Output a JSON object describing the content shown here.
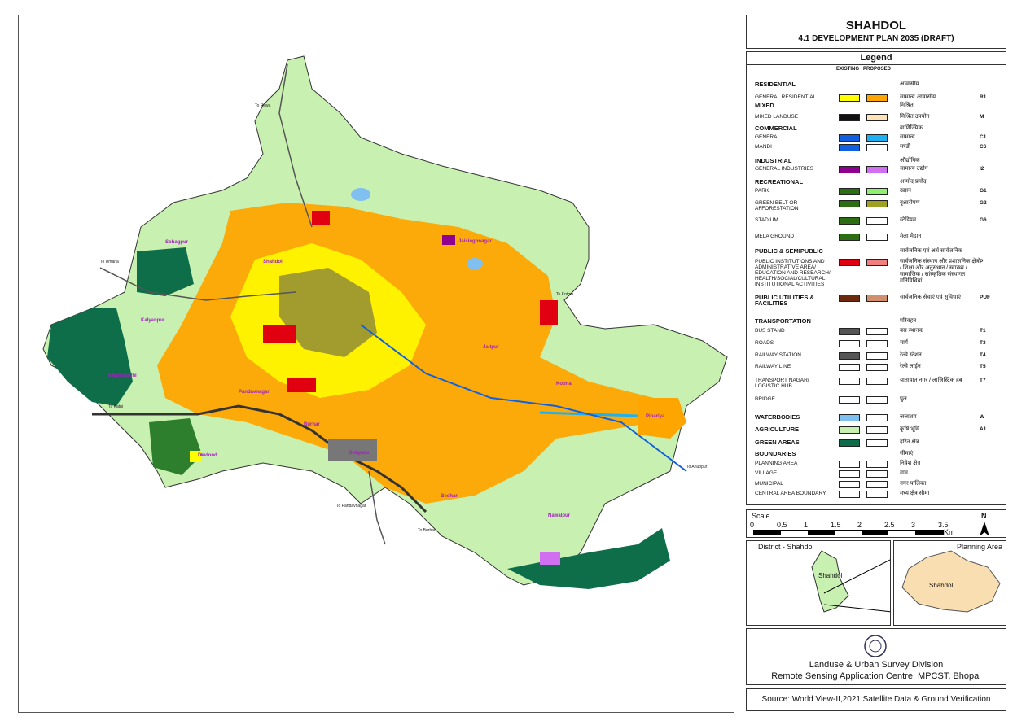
{
  "title": {
    "city": "SHAHDOL",
    "subtitle": "4.1 DEVELOPMENT PLAN  2035 (DRAFT)"
  },
  "legend": {
    "heading": "Legend",
    "col_existing": "EXISTING",
    "col_proposed": "PROPOSED",
    "rows": [
      {
        "label": "RESIDENTIAL",
        "section": true,
        "hindi": "आवासीय",
        "code": "",
        "ex": "",
        "pr": ""
      },
      {
        "label": "GENERAL RESIDENTIAL",
        "section": false,
        "hindi": "सामान्य आवासीय",
        "code": "R1",
        "ex": "#ffff00",
        "pr": "#ffa500"
      },
      {
        "label": "MIXED",
        "section": true,
        "hindi": "मिश्रित",
        "code": "",
        "ex": "",
        "pr": ""
      },
      {
        "label": "MIXED LANDUSE",
        "section": false,
        "hindi": "मिश्रित उपयोग",
        "code": "M",
        "ex": "#111111",
        "pr": "#ffe3b8"
      },
      {
        "label": "COMMERCIAL",
        "section": true,
        "hindi": "वाणिज्यिक",
        "code": "",
        "ex": "",
        "pr": ""
      },
      {
        "label": "GENERAL",
        "section": false,
        "hindi": "सामान्य",
        "code": "C1",
        "ex": "#1060e0",
        "pr": "#20b0f0"
      },
      {
        "label": "MANDI",
        "section": false,
        "hindi": "मण्डी",
        "code": "C6",
        "ex": "#1060e0",
        "pr": "#ffffff"
      },
      {
        "label": "INDUSTRIAL",
        "section": true,
        "hindi": "औद्योगिक",
        "code": "",
        "ex": "",
        "pr": ""
      },
      {
        "label": "GENERAL INDUSTRIES",
        "section": false,
        "hindi": "सामान्य उद्योग",
        "code": "I2",
        "ex": "#900090",
        "pr": "#d070f0"
      },
      {
        "label": "RECREATIONAL",
        "section": true,
        "hindi": "आमोद प्रमोद",
        "code": "",
        "ex": "",
        "pr": ""
      },
      {
        "label": "PARK",
        "section": false,
        "hindi": "उद्यान",
        "code": "G1",
        "ex": "#2d6e14",
        "pr": "#90ee70"
      },
      {
        "label": "GREEN BELT OR AFFORESTATION",
        "section": false,
        "hindi": "वृक्षारोपण",
        "code": "G2",
        "ex": "#2d6e14",
        "pr": "#a0a020"
      },
      {
        "label": "STADIUM",
        "section": false,
        "hindi": "स्टेडियम",
        "code": "G6",
        "ex": "#2d6e14",
        "pr": "#ffffff"
      },
      {
        "label": "MELA GROUND",
        "section": false,
        "hindi": "मेला मैदान",
        "code": "",
        "ex": "#2d6e14",
        "pr": "#ffffff"
      },
      {
        "label": "PUBLIC & SEMIPUBLIC",
        "section": true,
        "hindi": "सार्वजनिक एवं अर्ध सार्वजनिक",
        "code": "",
        "ex": "",
        "pr": ""
      },
      {
        "label": "PUBLIC INSTITUTIONS AND ADMINISTRATIVE AREA/ EDUCATION AND RESEARCH/ HEALTH/SOCIAL/CULTURAL INSTITUTIONAL ACTIVITIES",
        "section": false,
        "hindi": "सार्वजनिक संस्थान और प्रशासनिक क्षेत्रों / शिक्षा और अनुसंधान / स्वास्थ्य / सामाजिक / सांस्कृतिक संस्थागत गतिविधियां",
        "code": "P",
        "ex": "#e00010",
        "pr": "#f08080"
      },
      {
        "label": "PUBLIC UTILITIES & FACILITIES",
        "section": true,
        "hindi": "सार्वजनिक सेवाएं एवं सुविधाएं",
        "code": "PUF",
        "ex": "#6b2a10",
        "pr": "#d09070"
      },
      {
        "label": "TRANSPORTATION",
        "section": true,
        "hindi": "परिवहन",
        "code": "",
        "ex": "",
        "pr": ""
      },
      {
        "label": "BUS STAND",
        "section": false,
        "hindi": "बस स्थानक",
        "code": "T1",
        "ex": "#555555",
        "pr": "#ffffff"
      },
      {
        "label": "ROADS",
        "section": false,
        "hindi": "मार्ग",
        "code": "T3",
        "ex": "#ffffff",
        "pr": "#ffffff"
      },
      {
        "label": "RAILWAY STATION",
        "section": false,
        "hindi": "रेल्वे स्टेशन",
        "code": "T4",
        "ex": "#555555",
        "pr": "#ffffff"
      },
      {
        "label": "RAILWAY LINE",
        "section": false,
        "hindi": "रेल्वे लाईन",
        "code": "T5",
        "ex": "#ffffff",
        "pr": "#ffffff"
      },
      {
        "label": "TRANSPORT NAGAR/ LOGISTIC HUB",
        "section": false,
        "hindi": "यातायात नगर / लाजिस्टिक हब",
        "code": "T7",
        "ex": "#ffffff",
        "pr": "#ffffff"
      },
      {
        "label": "BRIDGE",
        "section": false,
        "hindi": "पुल",
        "code": "",
        "ex": "#ffffff",
        "pr": "#ffffff"
      },
      {
        "label": "WATERBODIES",
        "section": true,
        "hindi": "जलाशय",
        "code": "W",
        "ex": "#80c0f0",
        "pr": "#ffffff"
      },
      {
        "label": "AGRICULTURE",
        "section": true,
        "hindi": "कृषि भूमि",
        "code": "A1",
        "ex": "#c8f0b0",
        "pr": "#ffffff"
      },
      {
        "label": "GREEN AREAS",
        "section": true,
        "hindi": "हरित क्षेत्र",
        "code": "",
        "ex": "#0e6e4a",
        "pr": "#ffffff"
      },
      {
        "label": "BOUNDARIES",
        "section": true,
        "hindi": "सीमाएं",
        "code": "",
        "ex": "",
        "pr": ""
      },
      {
        "label": "PLANNING AREA",
        "section": false,
        "hindi": "निवेश क्षेत्र",
        "code": "",
        "ex": "#ffffff",
        "pr": "#ffffff"
      },
      {
        "label": "VILLAGE",
        "section": false,
        "hindi": "ग्राम",
        "code": "",
        "ex": "#ffffff",
        "pr": "#ffffff"
      },
      {
        "label": "MUNICIPAL",
        "section": false,
        "hindi": "नगर पालिका",
        "code": "",
        "ex": "#ffffff",
        "pr": "#ffffff"
      },
      {
        "label": "CENTRAL AREA BOUNDARY",
        "section": false,
        "hindi": "मध्य क्षेत्र सीमा",
        "code": "",
        "ex": "#ffffff",
        "pr": "#ffffff"
      }
    ]
  },
  "scale": {
    "label": "Scale",
    "ticks": [
      "0",
      "0.5",
      "1",
      "1.5",
      "2",
      "2.5",
      "3",
      "3.5"
    ],
    "unit": "Km",
    "north": "N"
  },
  "insets": {
    "district_caption": "District - Shahdol",
    "district_name": "Shahdol",
    "planning_caption": "Planning Area",
    "planning_name": "Shahdol"
  },
  "credit": {
    "line1": "Landuse & Urban Survey Division",
    "line2": "Remote Sensing Application Centre, MPCST, Bhopal"
  },
  "source": "Source: World View-II,2021 Satellite Data & Ground Verification",
  "map": {
    "labels": [
      "Shahdol",
      "Sohagpur",
      "Jaisinghnagar",
      "Kalyanpur",
      "Khannaudhi",
      "Pandavnagar",
      "Burhar",
      "Sohagpur",
      "Jaitpur",
      "Kotma",
      "Gohparu",
      "Devlond",
      "Beohari",
      "Nawalpur",
      "Pipariya"
    ],
    "roads": [
      "To Umaria",
      "To Katni",
      "To Anuppur",
      "To Kotma",
      "To Rewa",
      "To Burhar",
      "To Pandavnagar"
    ],
    "colors": {
      "agriculture": "#c8f0b0",
      "residential": "#ffa500",
      "residential_existing": "#ffff00",
      "green": "#0e6e4a",
      "water": "#80c0f0",
      "public": "#e00010",
      "road": "#555555",
      "rail": "#333333"
    }
  }
}
